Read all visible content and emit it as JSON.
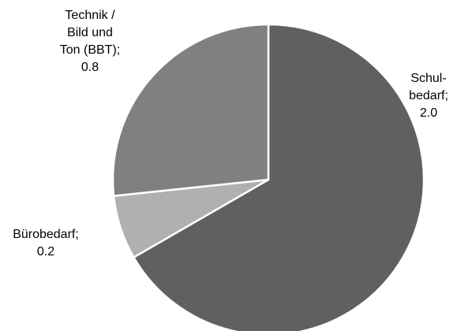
{
  "chart_data": {
    "type": "pie",
    "categories": [
      "Schul-\nbedarf;",
      "Bürobedarf;",
      "Technik /\nBild und\nTon (BBT);"
    ],
    "values": [
      2.0,
      0.2,
      0.8
    ],
    "value_labels": [
      "2.0",
      "0.2",
      "0.8"
    ],
    "colors": [
      "#606060",
      "#b0b0b0",
      "#808080"
    ]
  }
}
